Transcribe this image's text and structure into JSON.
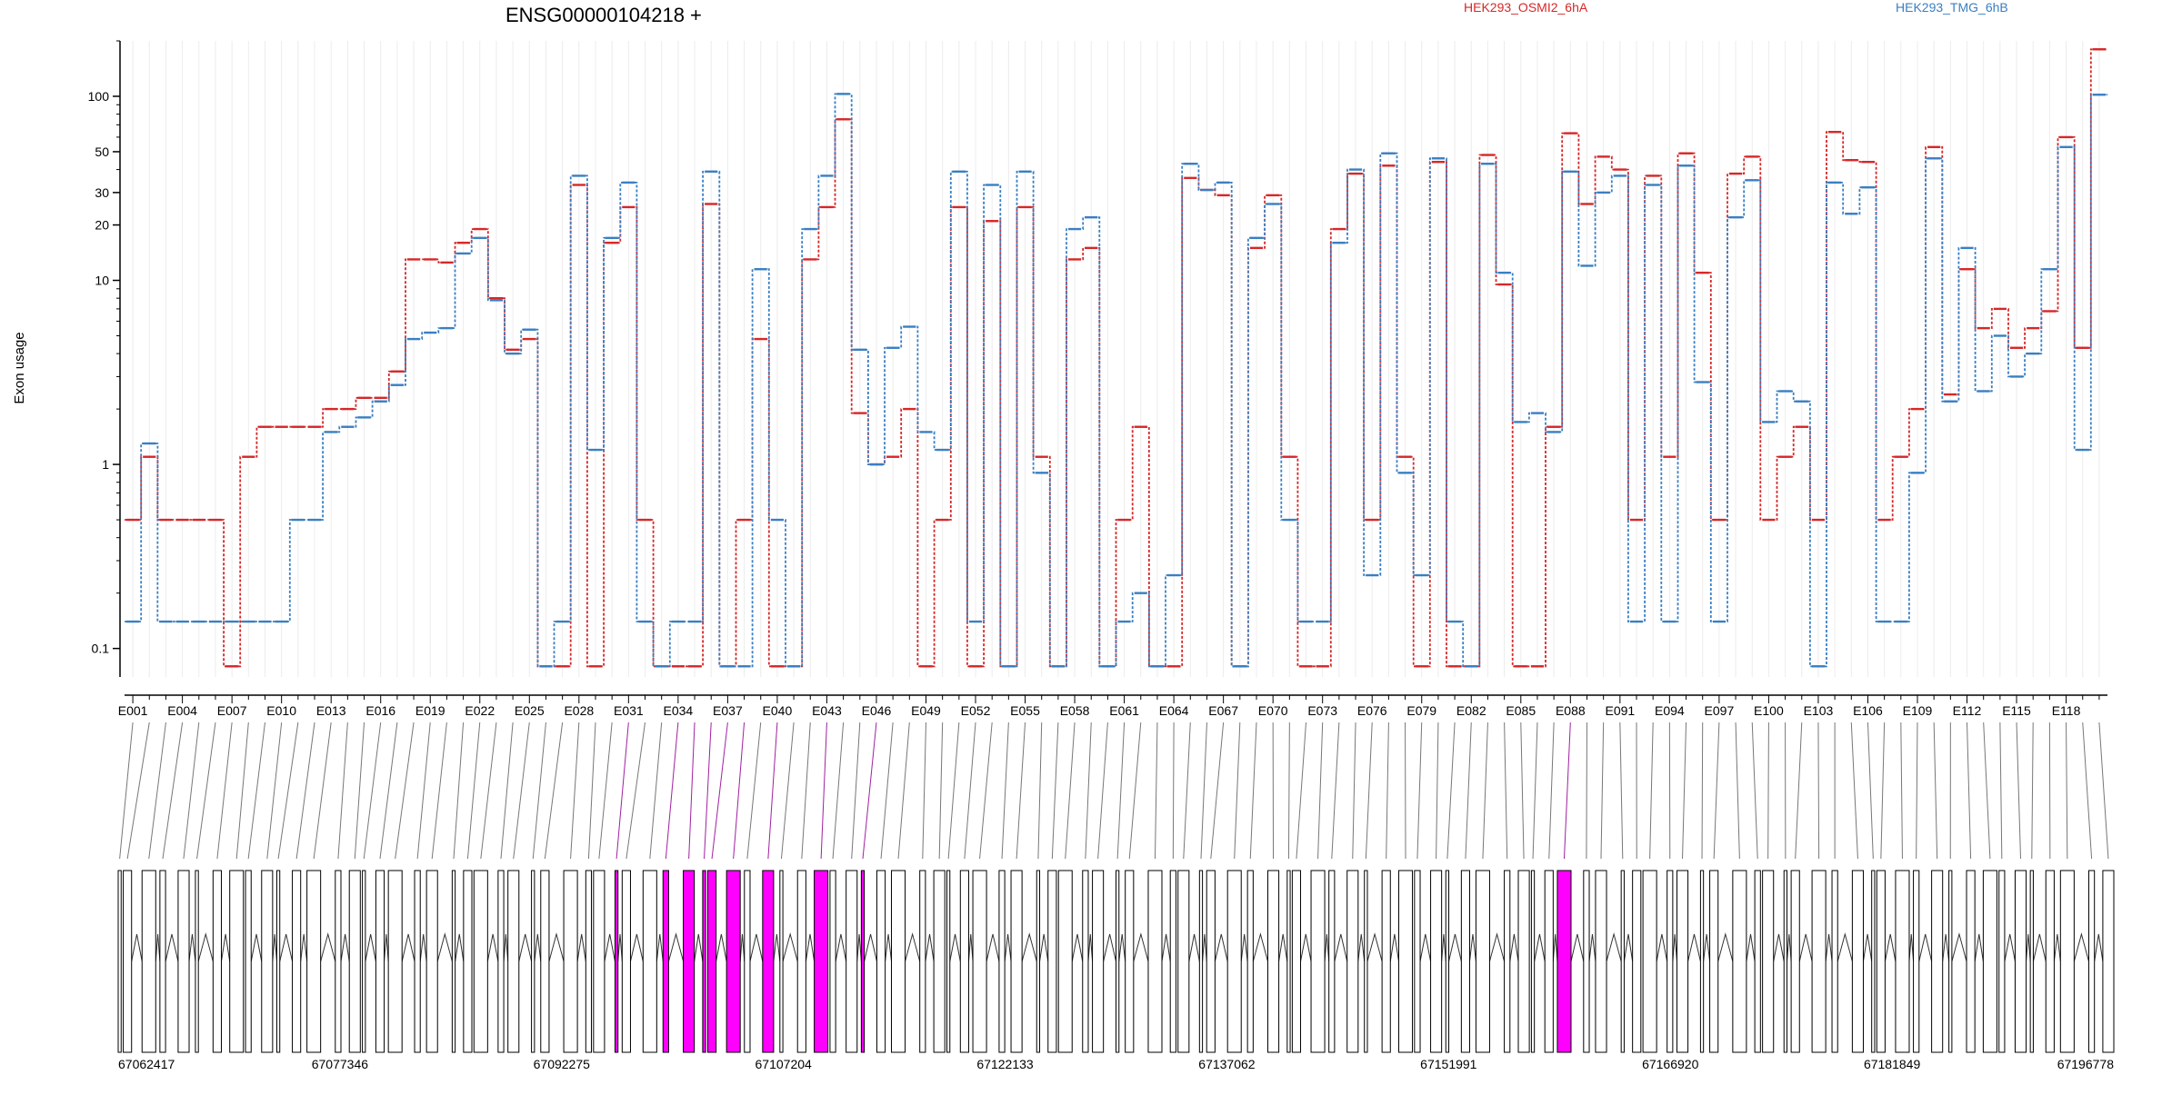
{
  "chart_data": {
    "type": "line",
    "title": "ENSG00000104218 +",
    "ylabel": "Exon usage",
    "xlabel": "",
    "y_scale": "log",
    "ylim": [
      0.07,
      200
    ],
    "y_ticks": [
      "0.1",
      "1",
      "10",
      "20",
      "30",
      "50",
      "100"
    ],
    "y_tick_values": [
      0.1,
      1,
      10,
      20,
      30,
      50,
      100
    ],
    "grid": "vertical lines per exon",
    "legend": "top",
    "categories": [
      "E001",
      "E002",
      "E003",
      "E004",
      "E005",
      "E006",
      "E007",
      "E008",
      "E009",
      "E010",
      "E011",
      "E012",
      "E013",
      "E014",
      "E015",
      "E016",
      "E017",
      "E018",
      "E019",
      "E020",
      "E021",
      "E022",
      "E023",
      "E024",
      "E025",
      "E026",
      "E027",
      "E028",
      "E029",
      "E030",
      "E031",
      "E032",
      "E033",
      "E034",
      "E035",
      "E036",
      "E037",
      "E038",
      "E039",
      "E040",
      "E041",
      "E042",
      "E043",
      "E044",
      "E045",
      "E046",
      "E047",
      "E048",
      "E049",
      "E050",
      "E051",
      "E052",
      "E053",
      "E054",
      "E055",
      "E056",
      "E057",
      "E058",
      "E059",
      "E060",
      "E061",
      "E062",
      "E063",
      "E064",
      "E065",
      "E066",
      "E067",
      "E068",
      "E069",
      "E070",
      "E071",
      "E072",
      "E073",
      "E074",
      "E075",
      "E076",
      "E077",
      "E078",
      "E079",
      "E080",
      "E081",
      "E082",
      "E083",
      "E084",
      "E085",
      "E086",
      "E087",
      "E088",
      "E089",
      "E090",
      "E091",
      "E092",
      "E093",
      "E094",
      "E095",
      "E096",
      "E097",
      "E098",
      "E099",
      "E100",
      "E101",
      "E102",
      "E103",
      "E104",
      "E105",
      "E106",
      "E107",
      "E108",
      "E109",
      "E110",
      "E111",
      "E112",
      "E113",
      "E114",
      "E115",
      "E116",
      "E117",
      "E118",
      "E119",
      "E120"
    ],
    "x_tick_labels": [
      "E001",
      "E004",
      "E007",
      "E010",
      "E013",
      "E016",
      "E019",
      "E022",
      "E025",
      "E028",
      "E031",
      "E034",
      "E037",
      "E040",
      "E043",
      "E046",
      "E049",
      "E052",
      "E055",
      "E058",
      "E061",
      "E064",
      "E067",
      "E070",
      "E073",
      "E076",
      "E079",
      "E082",
      "E085",
      "E088",
      "E091",
      "E094",
      "E097",
      "E100",
      "E103",
      "E106",
      "E109",
      "E112",
      "E115",
      "E118"
    ],
    "series": [
      {
        "name": "HEK293_OSMI2_6hA",
        "color": "#d62728",
        "values": [
          0.5,
          1.1,
          0.5,
          0.5,
          0.5,
          0.5,
          0.08,
          1.1,
          1.6,
          1.6,
          1.6,
          1.6,
          2.0,
          2.0,
          2.3,
          2.3,
          3.2,
          13.0,
          13.0,
          12.5,
          16.0,
          19.0,
          8.0,
          4.2,
          4.8,
          0.08,
          0.08,
          33.0,
          0.08,
          16.0,
          25.0,
          0.5,
          0.08,
          0.08,
          0.08,
          26.0,
          0.08,
          0.5,
          4.8,
          0.08,
          0.08,
          13.0,
          25.0,
          75.0,
          1.9,
          1.0,
          1.1,
          2.0,
          0.08,
          0.5,
          25.0,
          0.08,
          21.0,
          0.08,
          25.0,
          1.1,
          0.08,
          13.0,
          15.0,
          0.08,
          0.5,
          1.6,
          0.08,
          0.08,
          36.0,
          31.0,
          29.0,
          0.08,
          15.0,
          29.0,
          1.1,
          0.08,
          0.08,
          19.0,
          38.0,
          0.5,
          42.0,
          1.1,
          0.08,
          44.0,
          0.08,
          0.08,
          48.0,
          9.5,
          0.08,
          0.08,
          1.6,
          63.0,
          26.0,
          47.0,
          40.0,
          0.5,
          37.0,
          1.1,
          49.0,
          11.0,
          0.5,
          38.0,
          47.0,
          0.5,
          1.1,
          1.6,
          0.5,
          64.0,
          45.0,
          44.0,
          0.5,
          1.1,
          2.0,
          53.0,
          2.4,
          11.5,
          5.5,
          7.0,
          4.3,
          5.5,
          6.8,
          60.0,
          4.3,
          180.0
        ]
      },
      {
        "name": "HEK293_TMG_6hB",
        "color": "#3a7fc2",
        "values": [
          0.14,
          1.3,
          0.14,
          0.14,
          0.14,
          0.14,
          0.14,
          0.14,
          0.14,
          0.14,
          0.5,
          0.5,
          1.5,
          1.6,
          1.8,
          2.2,
          2.7,
          4.8,
          5.2,
          5.5,
          14.0,
          17.0,
          7.8,
          4.0,
          5.4,
          0.08,
          0.14,
          37.0,
          1.2,
          17.0,
          34.0,
          0.14,
          0.08,
          0.14,
          0.14,
          39.0,
          0.08,
          0.08,
          11.5,
          0.5,
          0.08,
          19.0,
          37.0,
          103.0,
          4.2,
          1.0,
          4.3,
          5.6,
          1.5,
          1.2,
          39.0,
          0.14,
          33.0,
          0.08,
          39.0,
          0.9,
          0.08,
          19.0,
          22.0,
          0.08,
          0.14,
          0.2,
          0.08,
          0.25,
          43.0,
          31.0,
          34.0,
          0.08,
          17.0,
          26.0,
          0.5,
          0.14,
          0.14,
          16.0,
          40.0,
          0.25,
          49.0,
          0.9,
          0.25,
          46.0,
          0.14,
          0.08,
          43.0,
          11.0,
          1.7,
          1.9,
          1.5,
          39.0,
          12.0,
          30.0,
          37.0,
          0.14,
          33.0,
          0.14,
          42.0,
          2.8,
          0.14,
          22.0,
          35.0,
          1.7,
          2.5,
          2.2,
          0.08,
          34.0,
          23.0,
          32.0,
          0.14,
          0.14,
          0.9,
          46.0,
          2.2,
          15.0,
          2.5,
          5.0,
          3.0,
          4.0,
          11.5,
          53.0,
          1.2,
          102.0
        ]
      }
    ],
    "genomic_axis": {
      "tick_labels": [
        "67062417",
        "67077346",
        "67092275",
        "67107204",
        "67122133",
        "67137062",
        "67151991",
        "67166920",
        "67181849",
        "67196778"
      ],
      "start": 67062417,
      "end": 67196778
    },
    "highlighted_exons": [
      "E031",
      "E034",
      "E035",
      "E036",
      "E037",
      "E038",
      "E040",
      "E043",
      "E046",
      "E088"
    ]
  },
  "colors": {
    "series1": "#d62728",
    "series2": "#3a7fc2",
    "highlight": "#ff00ff",
    "gray_exon": "#d3d3d3",
    "axis": "#000000",
    "grid": "#ececec"
  }
}
